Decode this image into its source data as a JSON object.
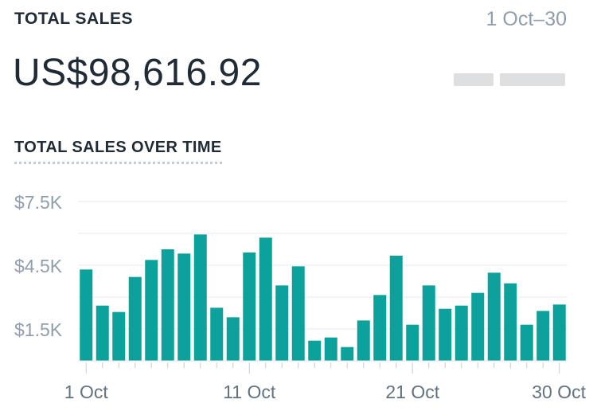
{
  "card": {
    "title": "TOTAL SALES",
    "date_range": "1 Oct–30",
    "total": "US$98,616.92",
    "chart_title": "TOTAL SALES OVER TIME"
  },
  "chart_data": {
    "type": "bar",
    "title": "TOTAL SALES OVER TIME",
    "xlabel": "",
    "ylabel": "",
    "ylim": [
      0,
      7500
    ],
    "y_ticks": [
      {
        "value": 1500,
        "label": "$1.5K"
      },
      {
        "value": 4500,
        "label": "$4.5K"
      },
      {
        "value": 7500,
        "label": "$7.5K"
      }
    ],
    "gridlines": [
      1500,
      3000,
      4500,
      6000,
      7500
    ],
    "x_tick_labels": [
      {
        "index": 0,
        "label": "1 Oct"
      },
      {
        "index": 10,
        "label": "11 Oct"
      },
      {
        "index": 20,
        "label": "21 Oct"
      },
      {
        "index": 29,
        "label": "30 Oct"
      }
    ],
    "categories": [
      "1 Oct",
      "2 Oct",
      "3 Oct",
      "4 Oct",
      "5 Oct",
      "6 Oct",
      "7 Oct",
      "8 Oct",
      "9 Oct",
      "10 Oct",
      "11 Oct",
      "12 Oct",
      "13 Oct",
      "14 Oct",
      "15 Oct",
      "16 Oct",
      "17 Oct",
      "18 Oct",
      "19 Oct",
      "20 Oct",
      "21 Oct",
      "22 Oct",
      "23 Oct",
      "24 Oct",
      "25 Oct",
      "26 Oct",
      "27 Oct",
      "28 Oct",
      "29 Oct",
      "30 Oct"
    ],
    "values": [
      4300,
      2600,
      2300,
      3950,
      4750,
      5250,
      5050,
      5950,
      2500,
      2050,
      5100,
      5800,
      3550,
      4450,
      950,
      1100,
      650,
      1900,
      3100,
      4950,
      1700,
      3550,
      2450,
      2600,
      3200,
      4150,
      3650,
      1700,
      2350,
      2650
    ],
    "bar_color": "#0ca19a",
    "grid": true
  }
}
